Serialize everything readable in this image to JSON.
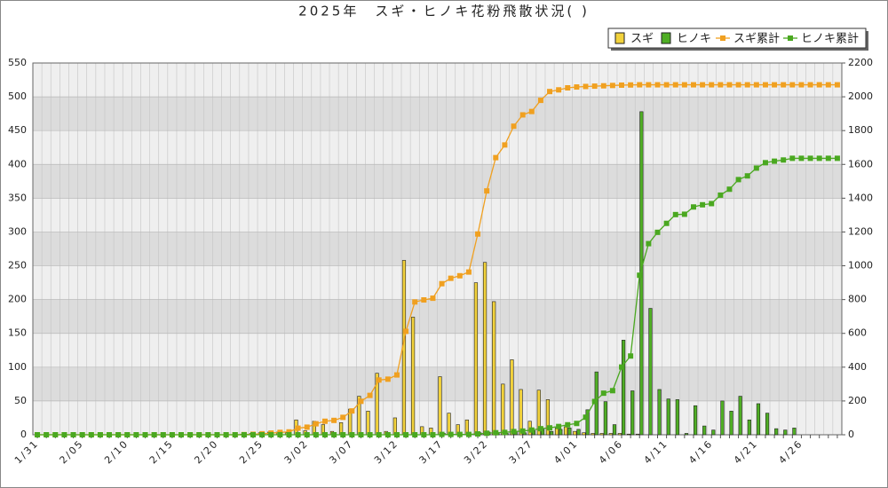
{
  "chart_data": {
    "type": "combo",
    "title": "2025年　スギ・ヒノキ花粉飛散状況( )",
    "categories": [
      "1/31",
      null,
      null,
      null,
      null,
      "2/05",
      null,
      null,
      null,
      null,
      "2/10",
      null,
      null,
      null,
      null,
      "2/15",
      null,
      null,
      null,
      null,
      "2/20",
      null,
      null,
      null,
      null,
      "2/25",
      null,
      null,
      null,
      null,
      "3/02",
      null,
      null,
      null,
      null,
      "3/07",
      null,
      null,
      null,
      null,
      "3/12",
      null,
      null,
      null,
      null,
      "3/17",
      null,
      null,
      null,
      null,
      "3/22",
      null,
      null,
      null,
      null,
      "3/27",
      null,
      null,
      null,
      null,
      "4/01",
      null,
      null,
      null,
      null,
      "4/06",
      null,
      null,
      null,
      null,
      "4/11",
      null,
      null,
      null,
      null,
      "4/16",
      null,
      null,
      null,
      null,
      "4/21",
      null,
      null,
      null,
      null,
      "4/26",
      null,
      null,
      null,
      null
    ],
    "series": [
      {
        "name": "スギ",
        "type": "bar",
        "color": "#f2d23c",
        "values": [
          0,
          0,
          0,
          0,
          0,
          0,
          0,
          0,
          0,
          0,
          0,
          0,
          0,
          0,
          0,
          0,
          0,
          0,
          0,
          0,
          0,
          0,
          0,
          1,
          2,
          3,
          4,
          4,
          3,
          22,
          6,
          20,
          15,
          5,
          18,
          38,
          57,
          35,
          91,
          5,
          25,
          258,
          174,
          12,
          10,
          86,
          32,
          15,
          22,
          225,
          255,
          197,
          75,
          111,
          67,
          20,
          66,
          52,
          10,
          12,
          5,
          3,
          2,
          2,
          2,
          2,
          1,
          1,
          0,
          0,
          0,
          0,
          0,
          0,
          0,
          0,
          0,
          0,
          0,
          0,
          0,
          0,
          0,
          0,
          0,
          0,
          0,
          0,
          0,
          0
        ]
      },
      {
        "name": "ヒノキ",
        "type": "bar",
        "color": "#4fae24",
        "values": [
          0,
          0,
          0,
          0,
          0,
          0,
          0,
          0,
          0,
          0,
          0,
          0,
          0,
          0,
          0,
          0,
          0,
          0,
          0,
          0,
          0,
          0,
          0,
          0,
          0,
          0,
          0,
          0,
          0,
          0,
          0,
          0,
          0,
          0,
          0,
          0,
          0,
          0,
          0,
          0,
          0,
          0,
          0,
          0,
          0,
          2,
          0,
          0,
          0,
          3,
          4,
          3,
          2,
          5,
          3,
          6,
          8,
          5,
          8,
          10,
          8,
          37,
          93,
          49,
          15,
          140,
          65,
          478,
          187,
          67,
          53,
          52,
          2,
          43,
          13,
          7,
          50,
          35,
          57,
          22,
          46,
          32,
          9,
          7,
          10,
          0,
          0,
          0,
          0,
          0
        ]
      },
      {
        "name": "スギ累計",
        "type": "line",
        "axis": "y2",
        "color": "#f0a020",
        "values": [
          0,
          0,
          0,
          0,
          0,
          0,
          0,
          0,
          0,
          0,
          0,
          0,
          0,
          0,
          0,
          0,
          0,
          0,
          0,
          0,
          0,
          0,
          0,
          1,
          3,
          6,
          10,
          14,
          17,
          39,
          45,
          65,
          80,
          85,
          103,
          141,
          198,
          233,
          324,
          329,
          354,
          612,
          786,
          798,
          808,
          894,
          926,
          941,
          963,
          1188,
          1443,
          1640,
          1715,
          1826,
          1893,
          1913,
          1979,
          2031,
          2041,
          2053,
          2058,
          2061,
          2063,
          2065,
          2067,
          2069,
          2070,
          2071,
          2071,
          2071,
          2071,
          2071,
          2071,
          2071,
          2071,
          2071,
          2071,
          2071,
          2071,
          2071,
          2071,
          2071,
          2071,
          2071,
          2071,
          2071,
          2071,
          2071,
          2071,
          2071
        ]
      },
      {
        "name": "ヒノキ累計",
        "type": "line",
        "axis": "y2",
        "color": "#4aa820",
        "values": [
          0,
          0,
          0,
          0,
          0,
          0,
          0,
          0,
          0,
          0,
          0,
          0,
          0,
          0,
          0,
          0,
          0,
          0,
          0,
          0,
          0,
          0,
          0,
          0,
          0,
          0,
          0,
          0,
          0,
          0,
          0,
          0,
          0,
          0,
          0,
          0,
          0,
          0,
          0,
          0,
          0,
          0,
          0,
          0,
          0,
          2,
          2,
          2,
          2,
          5,
          9,
          12,
          14,
          19,
          22,
          28,
          36,
          41,
          49,
          59,
          67,
          104,
          197,
          246,
          261,
          401,
          466,
          944,
          1131,
          1198,
          1251,
          1303,
          1305,
          1348,
          1361,
          1368,
          1418,
          1453,
          1510,
          1532,
          1578,
          1610,
          1619,
          1626,
          1636,
          1636,
          1636,
          1636,
          1636,
          1636
        ]
      }
    ],
    "ylim": [
      0,
      550
    ],
    "yticks": [
      0,
      50,
      100,
      150,
      200,
      250,
      300,
      350,
      400,
      450,
      500,
      550
    ],
    "y2lim": [
      0,
      2200
    ],
    "y2ticks": [
      0,
      200,
      400,
      600,
      800,
      1000,
      1200,
      1400,
      1600,
      1800,
      2000,
      2200
    ],
    "grid": true,
    "legend": "top-right"
  }
}
